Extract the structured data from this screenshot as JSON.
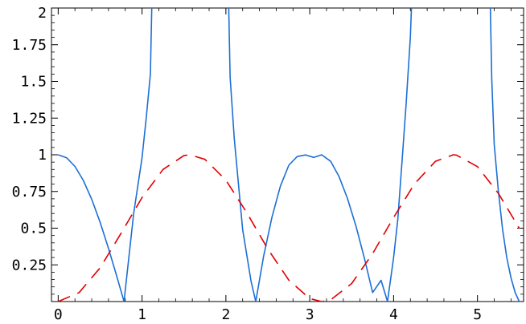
{
  "chart_data": {
    "type": "line",
    "title": "",
    "xlabel": "",
    "ylabel": "",
    "xlim": [
      -0.08,
      5.55
    ],
    "ylim": [
      0,
      2
    ],
    "x_ticks": [
      {
        "value": 0,
        "label": "0"
      },
      {
        "value": 1,
        "label": "1"
      },
      {
        "value": 2,
        "label": "2"
      },
      {
        "value": 3,
        "label": "3"
      },
      {
        "value": 4,
        "label": "4"
      },
      {
        "value": 5,
        "label": "5"
      }
    ],
    "y_ticks": [
      {
        "value": 0.25,
        "label": "0.25"
      },
      {
        "value": 0.5,
        "label": "0.5"
      },
      {
        "value": 0.75,
        "label": "0.75"
      },
      {
        "value": 1,
        "label": "1"
      },
      {
        "value": 1.25,
        "label": "1.25"
      },
      {
        "value": 1.5,
        "label": "1.5"
      },
      {
        "value": 1.75,
        "label": "1.75"
      },
      {
        "value": 2,
        "label": "2"
      }
    ],
    "grid": false,
    "legend": "none",
    "series": [
      {
        "style": "solid",
        "color": "#1c6fd6",
        "x": [
          0,
          0.1,
          0.2,
          0.3,
          0.4,
          0.5,
          0.6,
          0.7,
          0.785,
          0.9,
          1.0,
          1.05,
          1.1,
          2.05,
          2.1,
          2.2,
          2.3,
          2.356,
          2.45,
          2.55,
          2.65,
          2.75,
          2.85,
          2.95,
          3.05,
          3.142,
          3.25,
          3.35,
          3.45,
          3.55,
          3.65,
          3.75,
          3.85,
          3.927,
          4.0,
          4.05,
          4.1,
          4.15,
          4.2,
          5.17,
          5.2,
          5.25,
          5.3,
          5.35,
          5.4,
          5.45,
          5.498
        ],
        "y": [
          1.0,
          0.98,
          0.921,
          0.825,
          0.697,
          0.54,
          0.362,
          0.17,
          0.0,
          0.6,
          0.98,
          1.25,
          1.55,
          1.53,
          1.11,
          0.49,
          0.14,
          0.0,
          0.31,
          0.576,
          0.786,
          0.929,
          0.988,
          0.999,
          0.982,
          1.0,
          0.955,
          0.851,
          0.703,
          0.516,
          0.299,
          0.061,
          0.145,
          0.0,
          0.3,
          0.56,
          0.95,
          1.35,
          1.8,
          1.52,
          1.07,
          0.75,
          0.49,
          0.3,
          0.16,
          0.06,
          0.0
        ]
      },
      {
        "style": "dashed",
        "color": "#e00000",
        "x": [
          0,
          0.25,
          0.5,
          0.75,
          1.0,
          1.25,
          1.5,
          1.571,
          1.75,
          2.0,
          2.25,
          2.5,
          2.75,
          3.0,
          3.142,
          3.25,
          3.5,
          3.75,
          4.0,
          4.25,
          4.5,
          4.712,
          4.75,
          5.0,
          5.25,
          5.5
        ],
        "y": [
          0.0,
          0.061,
          0.23,
          0.465,
          0.708,
          0.9,
          0.995,
          1.0,
          0.969,
          0.827,
          0.605,
          0.358,
          0.146,
          0.02,
          0.0,
          0.012,
          0.123,
          0.326,
          0.573,
          0.803,
          0.956,
          1.0,
          0.998,
          0.919,
          0.737,
          0.498
        ]
      }
    ]
  }
}
